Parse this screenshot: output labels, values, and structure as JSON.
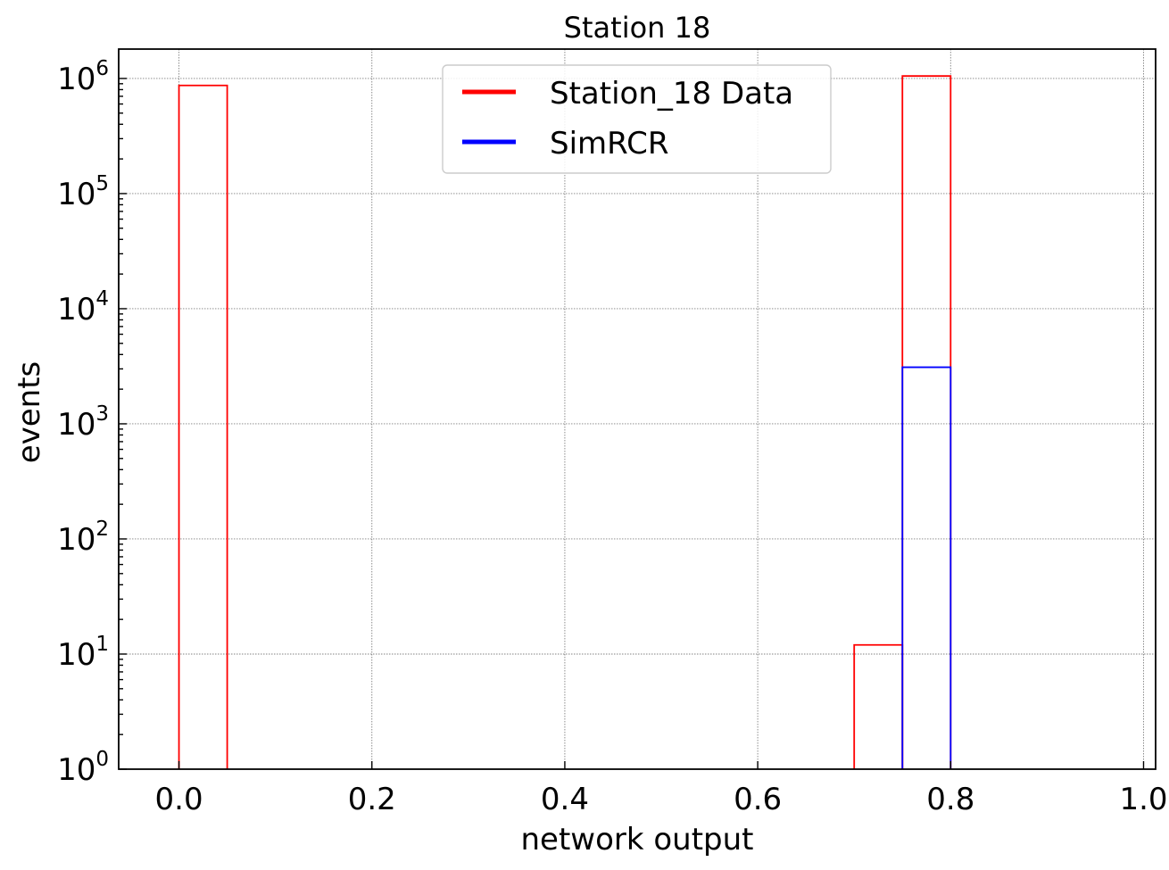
{
  "chart_data": {
    "type": "histogram",
    "title": "Station 18",
    "xlabel": "network output",
    "ylabel": "events",
    "xlim": [
      -0.0625,
      1.0125
    ],
    "ylim": [
      1,
      1800000
    ],
    "yscale": "log",
    "grid": true,
    "x_ticks": [
      {
        "value": 0.0,
        "label": "0.0"
      },
      {
        "value": 0.2,
        "label": "0.2"
      },
      {
        "value": 0.4,
        "label": "0.4"
      },
      {
        "value": 0.6,
        "label": "0.6"
      },
      {
        "value": 0.8,
        "label": "0.8"
      },
      {
        "value": 1.0,
        "label": "1.0"
      }
    ],
    "y_ticks": [
      {
        "value": 1,
        "base": "10",
        "exp": "0"
      },
      {
        "value": 10,
        "base": "10",
        "exp": "1"
      },
      {
        "value": 100,
        "base": "10",
        "exp": "2"
      },
      {
        "value": 1000,
        "base": "10",
        "exp": "3"
      },
      {
        "value": 10000,
        "base": "10",
        "exp": "4"
      },
      {
        "value": 100000,
        "base": "10",
        "exp": "5"
      },
      {
        "value": 1000000,
        "base": "10",
        "exp": "6"
      }
    ],
    "legend": {
      "position": "upper center"
    },
    "series": [
      {
        "name": "Station_18 Data",
        "color": "#ff0000",
        "bins": [
          {
            "x0": 0.0,
            "x1": 0.05,
            "count": 870000
          },
          {
            "x0": 0.7,
            "x1": 0.75,
            "count": 12
          },
          {
            "x0": 0.75,
            "x1": 0.8,
            "count": 1050000
          }
        ]
      },
      {
        "name": "SimRCR",
        "color": "#0000ff",
        "bins": [
          {
            "x0": 0.75,
            "x1": 0.8,
            "count": 3100
          }
        ]
      }
    ]
  }
}
